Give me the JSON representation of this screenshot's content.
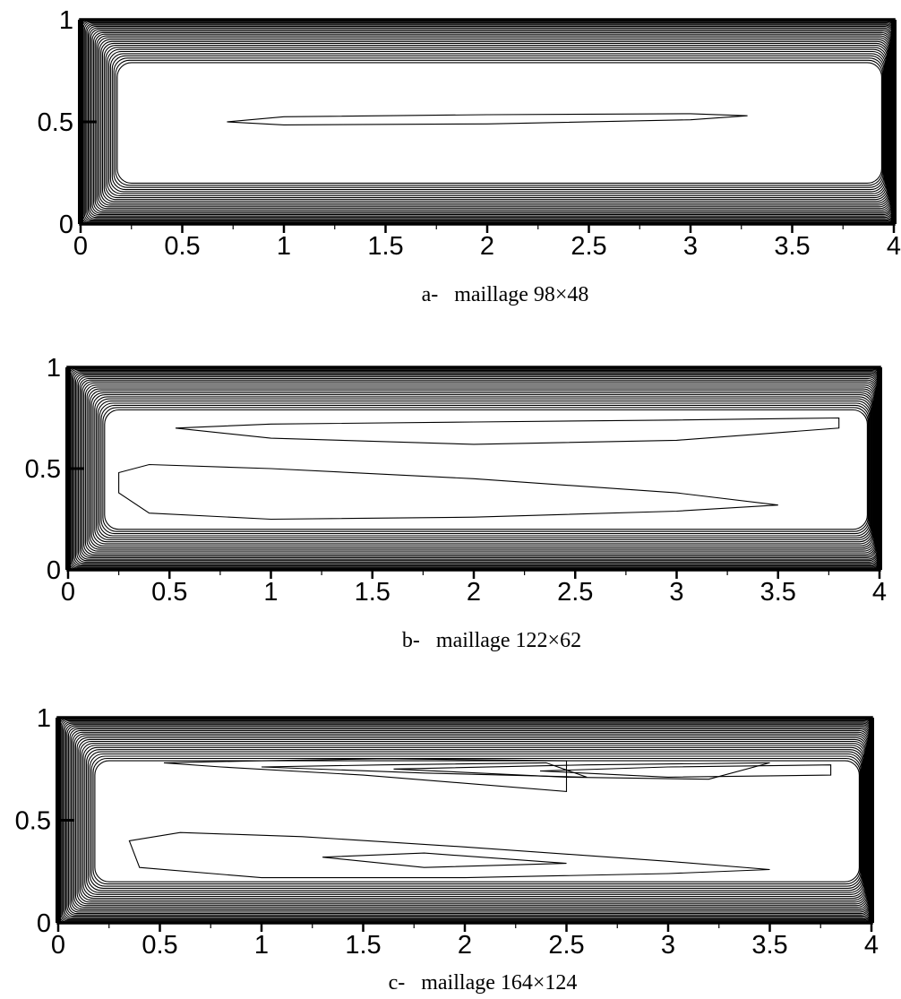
{
  "chart_data": [
    {
      "type": "contour",
      "caption": "a-   maillage 98×48",
      "xlim": [
        0,
        4
      ],
      "ylim": [
        0,
        1
      ],
      "x_ticks": [
        "0",
        "0.5",
        "1",
        "1.5",
        "2",
        "2.5",
        "3",
        "3.5",
        "4"
      ],
      "y_ticks": [
        "0",
        "0.5",
        "1"
      ],
      "inner_cells": [
        [
          [
            0.72,
            0.5
          ],
          [
            1.0,
            0.525
          ],
          [
            2.0,
            0.535
          ],
          [
            3.0,
            0.54
          ],
          [
            3.28,
            0.53
          ],
          [
            3.0,
            0.51
          ],
          [
            2.0,
            0.49
          ],
          [
            1.0,
            0.485
          ],
          [
            0.72,
            0.5
          ]
        ]
      ]
    },
    {
      "type": "contour",
      "caption": "b-   maillage 122×62",
      "xlim": [
        0,
        4
      ],
      "ylim": [
        0,
        1
      ],
      "x_ticks": [
        "0",
        "0.5",
        "1",
        "1.5",
        "2",
        "2.5",
        "3",
        "3.5",
        "4"
      ],
      "y_ticks": [
        "0",
        "0.5",
        "1"
      ],
      "inner_cells": [
        [
          [
            0.53,
            0.7
          ],
          [
            1.0,
            0.72
          ],
          [
            2.0,
            0.73
          ],
          [
            3.0,
            0.74
          ],
          [
            3.8,
            0.75
          ],
          [
            3.8,
            0.7
          ],
          [
            3.0,
            0.64
          ],
          [
            2.0,
            0.62
          ],
          [
            1.0,
            0.65
          ],
          [
            0.53,
            0.7
          ]
        ],
        [
          [
            3.5,
            0.32
          ],
          [
            3.0,
            0.29
          ],
          [
            2.0,
            0.26
          ],
          [
            1.0,
            0.25
          ],
          [
            0.4,
            0.28
          ],
          [
            0.25,
            0.38
          ],
          [
            0.25,
            0.48
          ],
          [
            0.4,
            0.52
          ],
          [
            1.0,
            0.5
          ],
          [
            2.0,
            0.45
          ],
          [
            3.0,
            0.38
          ],
          [
            3.5,
            0.32
          ]
        ]
      ]
    },
    {
      "type": "contour",
      "caption": "c-   maillage 164×124",
      "xlim": [
        0,
        4
      ],
      "ylim": [
        0,
        1
      ],
      "x_ticks": [
        "0",
        "0.5",
        "1",
        "1.5",
        "2",
        "2.5",
        "3",
        "3.5",
        "4"
      ],
      "y_ticks": [
        "0",
        "0.5",
        "1"
      ],
      "inner_cells": [
        [
          [
            0.52,
            0.78
          ],
          [
            1.0,
            0.79
          ],
          [
            1.6,
            0.8
          ],
          [
            2.5,
            0.79
          ],
          [
            2.5,
            0.64
          ],
          [
            1.5,
            0.72
          ],
          [
            0.8,
            0.76
          ],
          [
            0.52,
            0.78
          ]
        ],
        [
          [
            1.0,
            0.76
          ],
          [
            1.6,
            0.77
          ],
          [
            2.4,
            0.78
          ],
          [
            2.6,
            0.71
          ],
          [
            1.8,
            0.73
          ],
          [
            1.0,
            0.76
          ]
        ],
        [
          [
            1.65,
            0.75
          ],
          [
            2.6,
            0.77
          ],
          [
            3.5,
            0.78
          ],
          [
            3.2,
            0.7
          ],
          [
            2.5,
            0.71
          ],
          [
            1.65,
            0.75
          ]
        ],
        [
          [
            2.37,
            0.74
          ],
          [
            3.0,
            0.76
          ],
          [
            3.8,
            0.77
          ],
          [
            3.8,
            0.72
          ],
          [
            3.0,
            0.71
          ],
          [
            2.37,
            0.74
          ]
        ],
        [
          [
            3.5,
            0.26
          ],
          [
            3.0,
            0.24
          ],
          [
            2.0,
            0.22
          ],
          [
            1.0,
            0.22
          ],
          [
            0.4,
            0.27
          ],
          [
            0.35,
            0.4
          ],
          [
            0.6,
            0.44
          ],
          [
            1.2,
            0.42
          ],
          [
            2.0,
            0.37
          ],
          [
            3.0,
            0.3
          ],
          [
            3.5,
            0.26
          ]
        ],
        [
          [
            1.3,
            0.32
          ],
          [
            1.8,
            0.34
          ],
          [
            2.5,
            0.29
          ],
          [
            1.8,
            0.27
          ],
          [
            1.3,
            0.32
          ]
        ]
      ]
    }
  ]
}
